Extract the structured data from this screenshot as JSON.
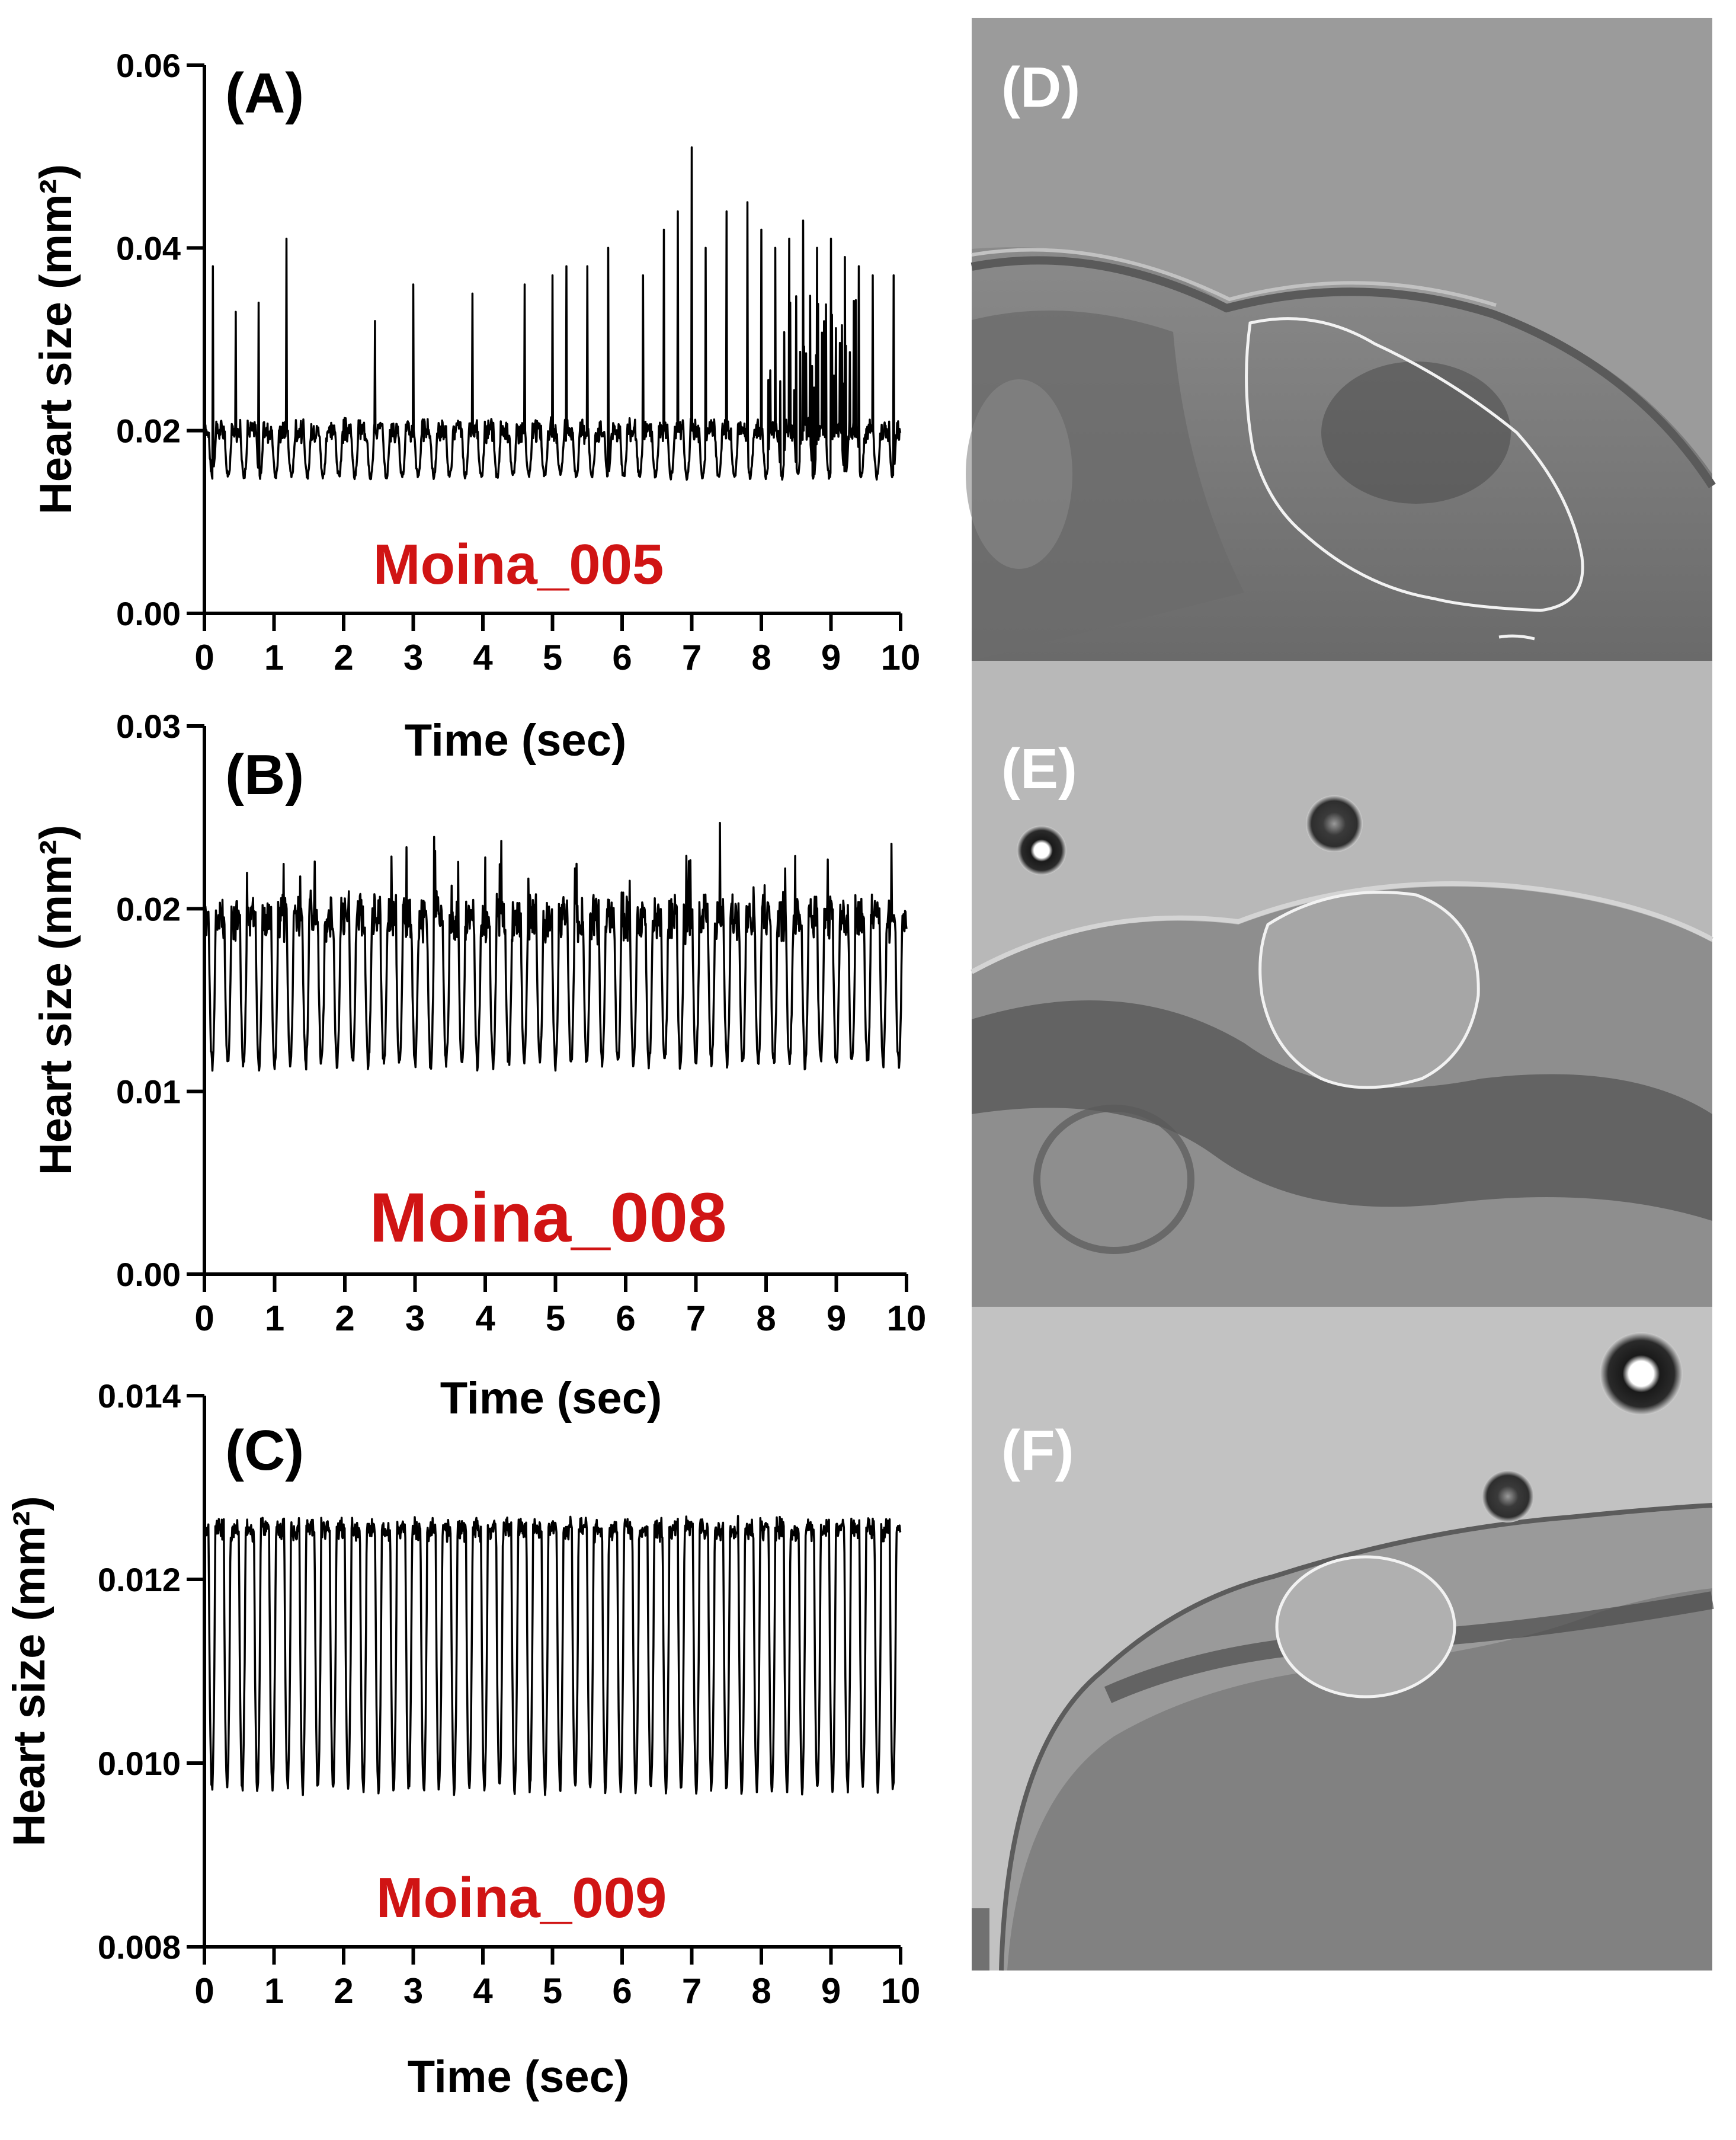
{
  "chart_data": [
    {
      "type": "line",
      "panel": "(A)",
      "label": "Moina_005",
      "xlabel": "Time (sec)",
      "ylabel": "Heart size (mm²)",
      "xlim": [
        0,
        10
      ],
      "ylim": [
        0,
        0.06
      ],
      "xticks": [
        "0",
        "1",
        "2",
        "3",
        "4",
        "5",
        "6",
        "7",
        "8",
        "9",
        "10"
      ],
      "yticks": [
        "0.00",
        "0.02",
        "0.04",
        "0.06"
      ],
      "series": [
        {
          "baseline": 0.02,
          "trough": 0.015,
          "beats": 44,
          "spikes": [
            [
              0.12,
              0.038
            ],
            [
              0.45,
              0.033
            ],
            [
              0.78,
              0.034
            ],
            [
              1.18,
              0.041
            ],
            [
              2.45,
              0.032
            ],
            [
              3.0,
              0.036
            ],
            [
              3.85,
              0.035
            ],
            [
              4.6,
              0.036
            ],
            [
              5.0,
              0.037
            ],
            [
              5.2,
              0.038
            ],
            [
              5.5,
              0.038
            ],
            [
              5.8,
              0.04
            ],
            [
              6.3,
              0.037
            ],
            [
              6.6,
              0.042
            ],
            [
              6.8,
              0.044
            ],
            [
              7.0,
              0.051
            ],
            [
              7.2,
              0.04
            ],
            [
              7.5,
              0.044
            ],
            [
              7.8,
              0.045
            ],
            [
              8.0,
              0.042
            ],
            [
              8.2,
              0.04
            ],
            [
              8.4,
              0.041
            ],
            [
              8.6,
              0.043
            ],
            [
              8.8,
              0.04
            ],
            [
              9.0,
              0.041
            ],
            [
              9.2,
              0.039
            ],
            [
              9.4,
              0.038
            ],
            [
              9.6,
              0.037
            ],
            [
              9.9,
              0.037
            ]
          ],
          "spike_floor": 0.024
        }
      ]
    },
    {
      "type": "line",
      "panel": "(B)",
      "label": "Moina_008",
      "xlabel": "Time (sec)",
      "ylabel": "Heart size (mm²)",
      "xlim": [
        0,
        10
      ],
      "ylim": [
        0,
        0.03
      ],
      "xticks": [
        "0",
        "1",
        "2",
        "3",
        "4",
        "5",
        "6",
        "7",
        "8",
        "9",
        "10"
      ],
      "yticks": [
        "0.00",
        "0.01",
        "0.02",
        "0.03"
      ],
      "series": [
        {
          "baseline": 0.0195,
          "trough": 0.0115,
          "peak_max": 0.024,
          "beats": 45
        }
      ]
    },
    {
      "type": "line",
      "panel": "(C)",
      "label": "Moina_009",
      "xlabel": "Time (sec)",
      "ylabel": "Heart size (mm²)",
      "xlim": [
        0,
        10
      ],
      "ylim": [
        0.008,
        0.015
      ],
      "xticks": [
        "0",
        "1",
        "2",
        "3",
        "4",
        "5",
        "6",
        "7",
        "8",
        "9",
        "10"
      ],
      "yticks": [
        "0.008",
        "0.010",
        "0.012",
        "0.014"
      ],
      "series": [
        {
          "baseline": 0.0133,
          "trough": 0.01,
          "beats": 46
        }
      ]
    }
  ],
  "images": [
    {
      "panel": "(D)"
    },
    {
      "panel": "(E)"
    },
    {
      "panel": "(F)"
    }
  ],
  "colors": {
    "trace": "#000000",
    "label": "#d01414",
    "outline": "#f2f2f2",
    "panel_text": "#ffffff"
  }
}
